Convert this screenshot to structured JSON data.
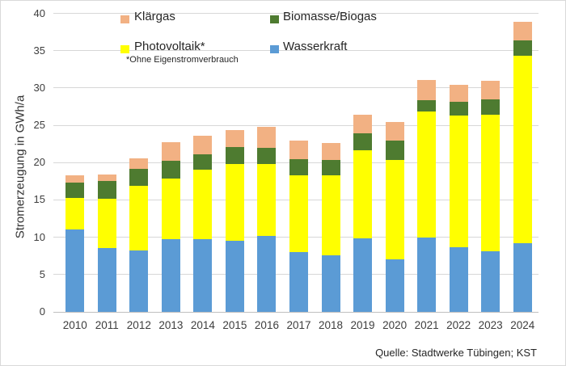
{
  "legend": {
    "items": [
      {
        "label": "Klärgas",
        "color": "#f2b183",
        "note": ""
      },
      {
        "label": "Biomasse/Biogas",
        "color": "#4e7b30",
        "note": ""
      },
      {
        "label": "Photovoltaik*",
        "color": "#ffff00",
        "note": "*Ohne Eigenstromverbrauch"
      },
      {
        "label": "Wasserkraft",
        "color": "#5b9bd5",
        "note": ""
      }
    ]
  },
  "axes": {
    "y_title": "Stromerzeugung in GWh/a",
    "y_ticks": [
      0,
      5,
      10,
      15,
      20,
      25,
      30,
      35,
      40
    ]
  },
  "source": "Quelle: Stadtwerke Tübingen; KST",
  "colors": {
    "wasserkraft": "#5b9bd5",
    "photovoltaik": "#ffff00",
    "biomasse": "#4e7b30",
    "klaergas": "#f2b183",
    "gridline": "#d7d7d7"
  },
  "chart_data": {
    "type": "bar",
    "stacked": true,
    "title": "",
    "xlabel": "",
    "ylabel": "Stromerzeugung in GWh/a",
    "ylim": [
      0,
      40
    ],
    "ytick_step": 5,
    "grid": true,
    "legend_position": "top",
    "categories": [
      "2010",
      "2011",
      "2012",
      "2013",
      "2014",
      "2015",
      "2016",
      "2017",
      "2018",
      "2019",
      "2020",
      "2021",
      "2022",
      "2023",
      "2024"
    ],
    "series": [
      {
        "name": "Wasserkraft",
        "color": "#5b9bd5",
        "values": [
          11.0,
          8.5,
          8.2,
          9.7,
          9.7,
          9.5,
          10.2,
          8.0,
          7.6,
          9.8,
          7.0,
          10.0,
          8.7,
          8.1,
          9.2
        ]
      },
      {
        "name": "Photovoltaik*",
        "color": "#ffff00",
        "values": [
          4.3,
          6.7,
          8.7,
          8.2,
          9.3,
          10.3,
          9.6,
          10.3,
          10.7,
          11.8,
          13.3,
          16.8,
          17.6,
          18.3,
          25.1
        ]
      },
      {
        "name": "Biomasse/Biogas",
        "color": "#4e7b30",
        "values": [
          2.0,
          2.3,
          2.3,
          2.3,
          2.1,
          2.3,
          2.2,
          2.2,
          2.1,
          2.3,
          2.6,
          1.6,
          1.8,
          2.1,
          2.1
        ]
      },
      {
        "name": "Klärgas",
        "color": "#f2b183",
        "values": [
          1.0,
          0.9,
          1.4,
          2.5,
          2.5,
          2.3,
          2.8,
          2.4,
          2.2,
          2.5,
          2.5,
          2.7,
          2.3,
          2.5,
          2.5
        ]
      }
    ],
    "totals": [
      18.3,
      18.4,
      20.6,
      22.7,
      23.6,
      24.4,
      24.8,
      22.9,
      22.6,
      26.4,
      25.4,
      31.1,
      30.4,
      31.0,
      38.9
    ]
  }
}
